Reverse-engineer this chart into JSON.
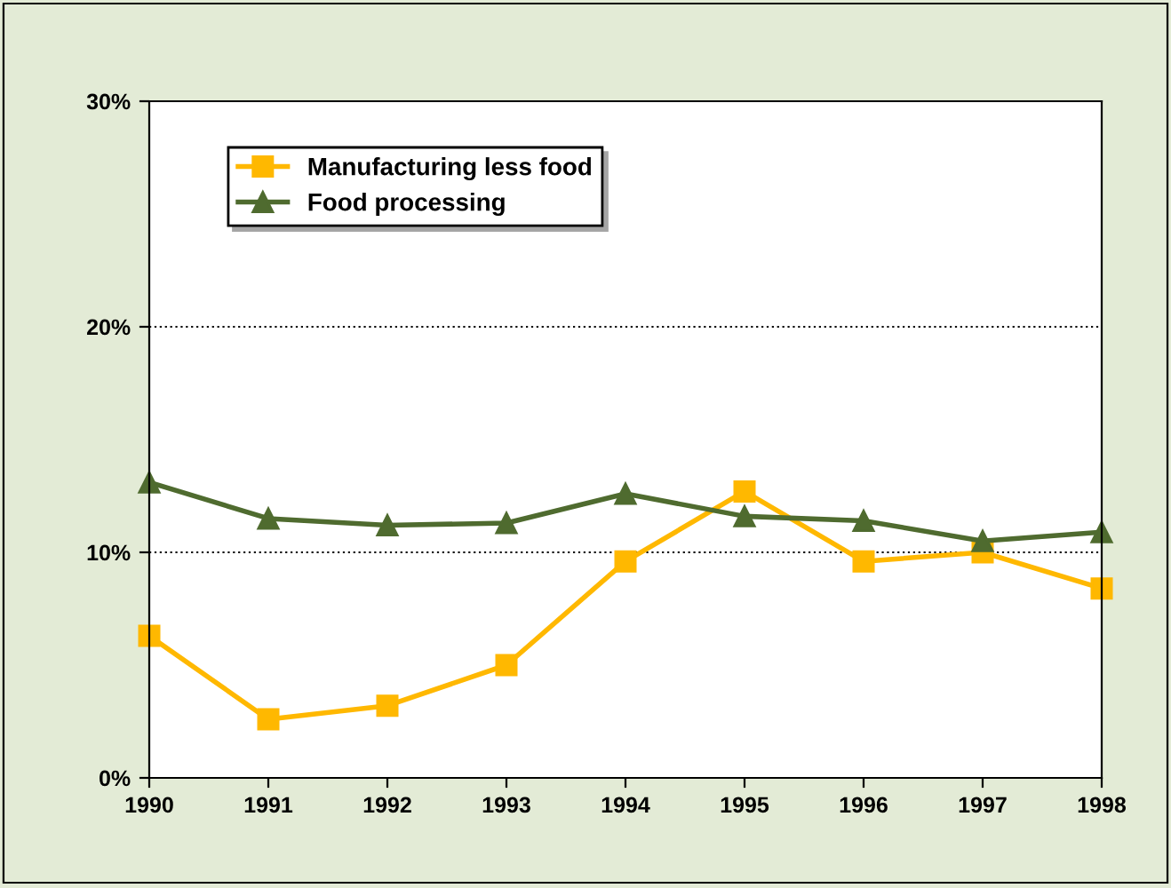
{
  "chart_data": {
    "type": "line",
    "x": [
      1990,
      1991,
      1992,
      1993,
      1994,
      1995,
      1996,
      1997,
      1998
    ],
    "series": [
      {
        "name": "Manufacturing less food",
        "color": "#ffb800",
        "marker": "square",
        "values": [
          6.3,
          2.6,
          3.2,
          5.0,
          9.6,
          12.7,
          9.6,
          10.0,
          8.4
        ]
      },
      {
        "name": "Food processing",
        "color": "#4f6b2f",
        "marker": "triangle",
        "values": [
          13.1,
          11.5,
          11.2,
          11.3,
          12.6,
          11.6,
          11.4,
          10.5,
          10.9
        ]
      }
    ],
    "xlim": [
      1990,
      1998
    ],
    "xticks": [
      1990,
      1991,
      1992,
      1993,
      1994,
      1995,
      1996,
      1997,
      1998
    ],
    "ylim": [
      0,
      30
    ],
    "yticks": [
      {
        "value": 0,
        "label": "0%"
      },
      {
        "value": 10,
        "label": "10%"
      },
      {
        "value": 20,
        "label": "20%"
      },
      {
        "value": 30,
        "label": "30%"
      }
    ],
    "grid": "y",
    "legend": "top left",
    "line_style": "solid"
  }
}
